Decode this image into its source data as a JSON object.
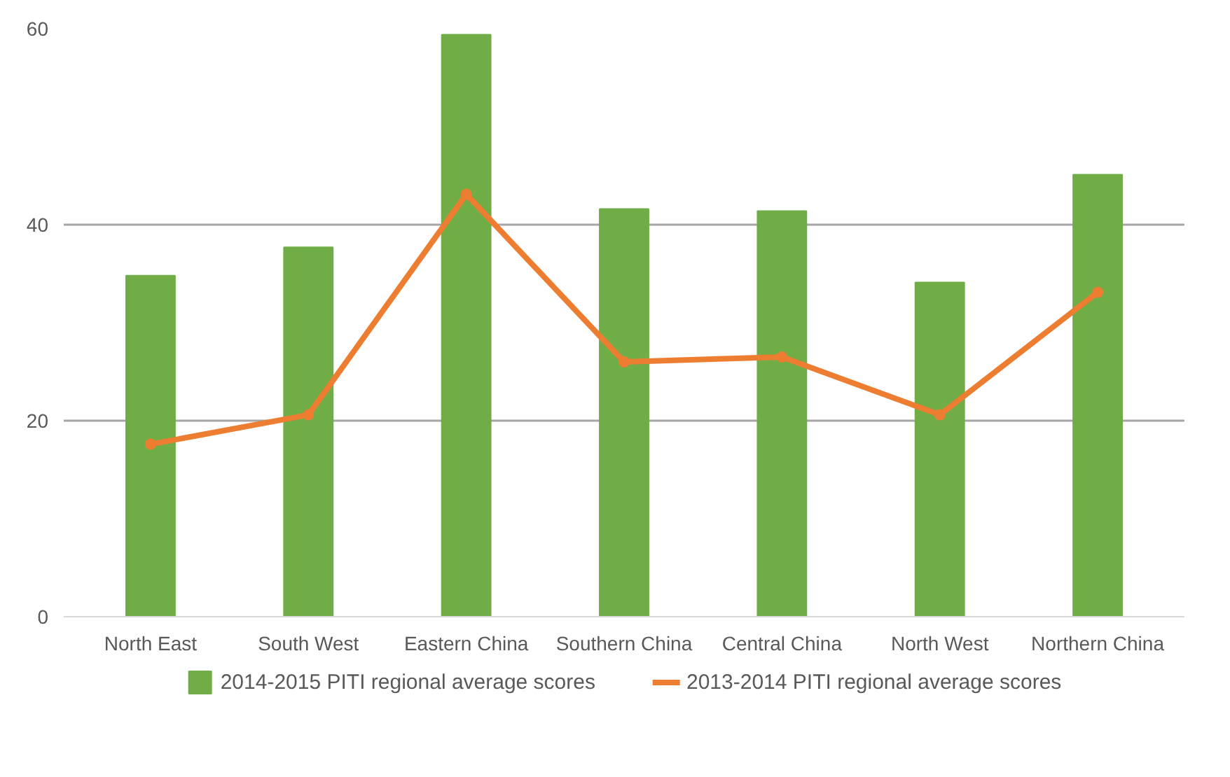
{
  "chart_data": {
    "type": "bar",
    "categories": [
      "North East",
      "South West",
      "Eastern China",
      "Southern China",
      "Central China",
      "North West",
      "Northern China"
    ],
    "series": [
      {
        "name": "2014-2015 PITI regional average scores",
        "color": "#70ad47",
        "values": [
          34.8,
          37.7,
          59.4,
          41.6,
          41.4,
          34.1,
          45.1
        ]
      },
      {
        "name": "2013-2014 PITI regional average scores",
        "type": "line",
        "color": "#ed7d31",
        "values": [
          17.6,
          20.6,
          43.1,
          26.0,
          26.5,
          20.6,
          33.1
        ]
      }
    ],
    "ylim": [
      0,
      60
    ],
    "yticks": [
      0,
      20,
      40,
      60
    ],
    "grid": "y",
    "legend": "bottom",
    "marker": "circle",
    "line_style": "solid"
  }
}
